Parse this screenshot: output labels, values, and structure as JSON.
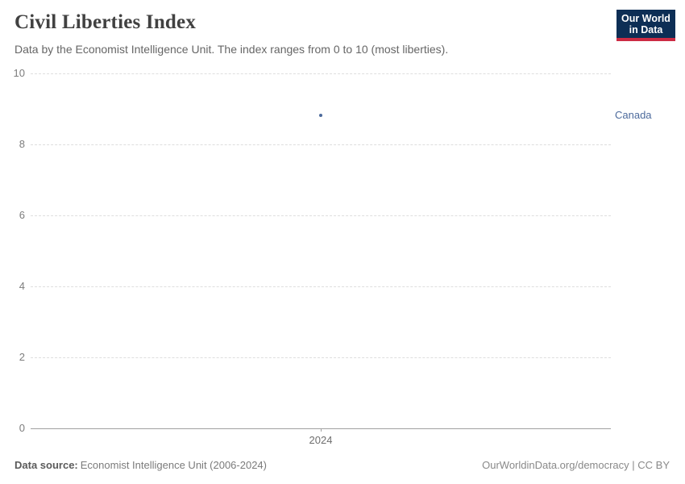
{
  "chart_data": {
    "type": "scatter",
    "title": "Civil Liberties Index",
    "subtitle": "Data by the Economist Intelligence Unit. The index ranges from 0 to 10 (most liberties).",
    "entity_label": "Canada",
    "series": [
      {
        "name": "Canada",
        "color": "#4c6a9c",
        "points": [
          {
            "x": 2024,
            "y": 8.82
          }
        ]
      }
    ],
    "x_ticks": [
      "2024"
    ],
    "y_ticks": [
      0,
      2,
      4,
      6,
      8,
      10
    ],
    "ylim": [
      0,
      10
    ],
    "grid": "horizontal-dashed",
    "legend_position": "right-entity-label"
  },
  "logo": {
    "line1": "Our World",
    "line2": "in Data",
    "bg_color": "#0d2e55",
    "underline_color": "#cc2b43"
  },
  "footer": {
    "source_label": "Data source:",
    "source_value": "Economist Intelligence Unit (2006-2024)",
    "license_text": "OurWorldinData.org/democracy | CC BY"
  }
}
